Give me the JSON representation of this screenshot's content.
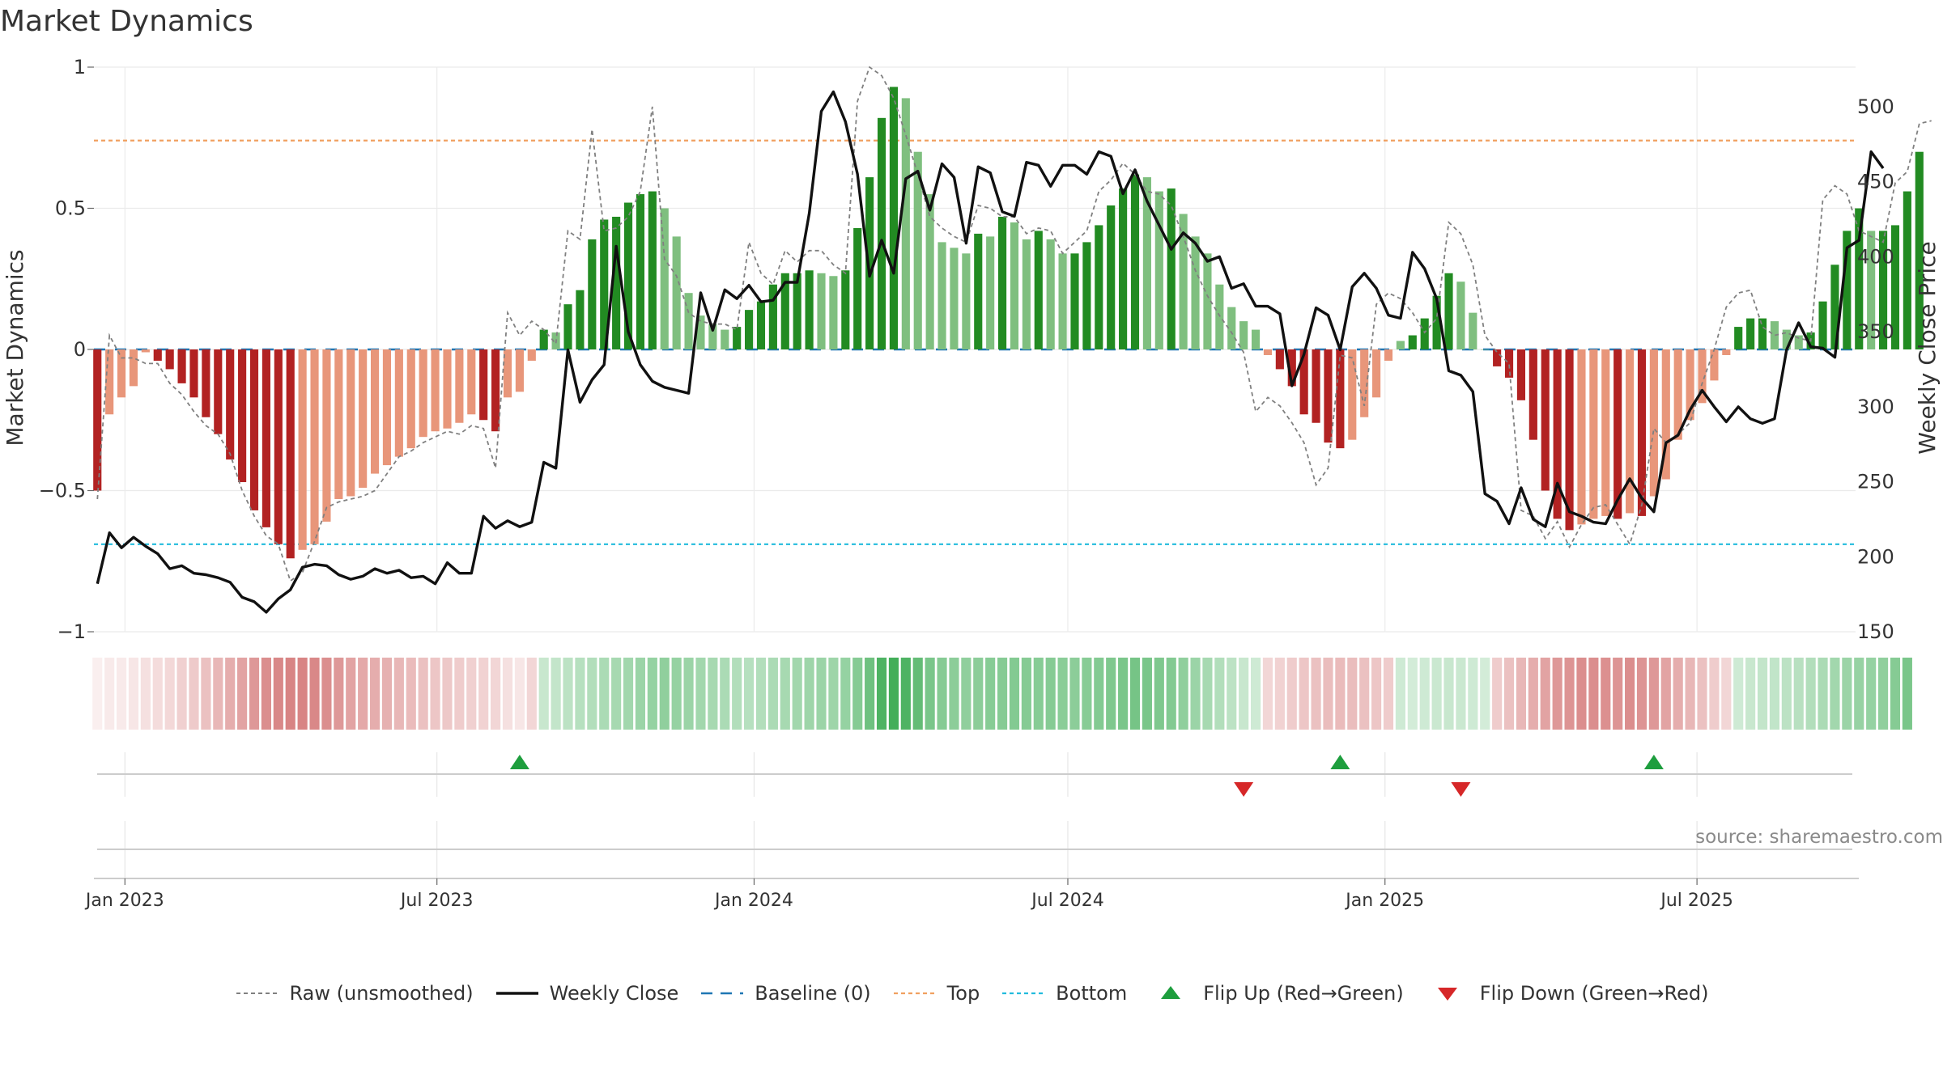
{
  "title": "Market Dynamics",
  "source": "source: sharemaestro.com",
  "legend": [
    {
      "label": "Raw (unsmoothed)",
      "kind": "dashed-gray"
    },
    {
      "label": "Weekly Close",
      "kind": "solid-black"
    },
    {
      "label": "Baseline (0)",
      "kind": "dashed-blue"
    },
    {
      "label": "Top",
      "kind": "dotted-orange"
    },
    {
      "label": "Bottom",
      "kind": "dotted-cyan"
    },
    {
      "label": "Flip Up (Red→Green)",
      "kind": "triangle-up"
    },
    {
      "label": "Flip Down (Green→Red)",
      "kind": "triangle-down"
    }
  ],
  "colors": {
    "pos_strong": "#228B22",
    "pos_weak": "#7FBF7F",
    "neg_strong": "#B22222",
    "neg_weak": "#E8967A",
    "raw": "#808080",
    "close": "#111111",
    "baseline": "#1F77B4",
    "top": "#F0A060",
    "bottom": "#22BBDD",
    "flip_up": "#1E9E3E",
    "flip_down": "#D62728"
  },
  "chart_data": {
    "type": "bar",
    "title": "Market Dynamics",
    "ylabel_left": "Market Dynamics",
    "ylabel_right": "Weekly Close Price",
    "ylim_left": [
      -1,
      1
    ],
    "ylim_right": [
      150,
      520
    ],
    "yticks_left": [
      "1",
      "0.5",
      "0",
      "−0.5",
      "−1"
    ],
    "yticks_left_values": [
      1,
      0.5,
      0,
      -0.5,
      -1
    ],
    "yticks_right": [
      "500",
      "450",
      "400",
      "350",
      "300",
      "250",
      "200",
      "150"
    ],
    "yticks_right_values": [
      500,
      450,
      400,
      350,
      300,
      250,
      200,
      150
    ],
    "xlim": [
      "2022-12-14",
      "2025-10-01"
    ],
    "xticks": [
      {
        "label": "Jan 2023",
        "date": "2023-01-01"
      },
      {
        "label": "Jul 2023",
        "date": "2023-07-01"
      },
      {
        "label": "Jan 2024",
        "date": "2024-01-01"
      },
      {
        "label": "Jul 2024",
        "date": "2024-07-01"
      },
      {
        "label": "Jan 2025",
        "date": "2025-01-01"
      },
      {
        "label": "Jul 2025",
        "date": "2025-07-01"
      }
    ],
    "first_week": "2022-12-16",
    "top_level": 0.74,
    "bottom_level": -0.69,
    "grid": true,
    "legend_position": "bottom",
    "dynamics": [
      -0.5,
      -0.23,
      -0.17,
      -0.13,
      -0.01,
      -0.04,
      -0.07,
      -0.12,
      -0.17,
      -0.24,
      -0.3,
      -0.39,
      -0.47,
      -0.57,
      -0.63,
      -0.69,
      -0.74,
      -0.71,
      -0.69,
      -0.61,
      -0.53,
      -0.52,
      -0.49,
      -0.44,
      -0.41,
      -0.38,
      -0.35,
      -0.31,
      -0.29,
      -0.28,
      -0.26,
      -0.23,
      -0.25,
      -0.29,
      -0.17,
      -0.15,
      -0.04,
      0.07,
      0.06,
      0.16,
      0.21,
      0.39,
      0.46,
      0.47,
      0.52,
      0.55,
      0.56,
      0.5,
      0.4,
      0.2,
      0.12,
      0.09,
      0.07,
      0.08,
      0.14,
      0.17,
      0.23,
      0.27,
      0.27,
      0.28,
      0.27,
      0.26,
      0.28,
      0.43,
      0.61,
      0.82,
      0.93,
      0.89,
      0.7,
      0.55,
      0.38,
      0.36,
      0.34,
      0.41,
      0.4,
      0.47,
      0.45,
      0.39,
      0.42,
      0.39,
      0.34,
      0.34,
      0.38,
      0.44,
      0.51,
      0.57,
      0.62,
      0.61,
      0.56,
      0.57,
      0.48,
      0.4,
      0.34,
      0.23,
      0.15,
      0.1,
      0.07,
      -0.02,
      -0.07,
      -0.13,
      -0.23,
      -0.26,
      -0.33,
      -0.35,
      -0.32,
      -0.24,
      -0.17,
      -0.04,
      0.03,
      0.05,
      0.11,
      0.19,
      0.27,
      0.24,
      0.13,
      0.0,
      -0.06,
      -0.1,
      -0.18,
      -0.32,
      -0.5,
      -0.6,
      -0.64,
      -0.62,
      -0.6,
      -0.59,
      -0.6,
      -0.58,
      -0.59,
      -0.52,
      -0.46,
      -0.32,
      -0.25,
      -0.19,
      -0.11,
      -0.02,
      0.08,
      0.11,
      0.11,
      0.1,
      0.07,
      0.05,
      0.06,
      0.17,
      0.3,
      0.42,
      0.5,
      0.42,
      0.42,
      0.44,
      0.56,
      0.7
    ],
    "raw": [
      -0.53,
      0.05,
      -0.03,
      -0.03,
      -0.05,
      -0.05,
      -0.12,
      -0.16,
      -0.22,
      -0.27,
      -0.3,
      -0.37,
      -0.5,
      -0.59,
      -0.66,
      -0.69,
      -0.82,
      -0.79,
      -0.68,
      -0.56,
      -0.54,
      -0.53,
      -0.52,
      -0.5,
      -0.44,
      -0.38,
      -0.36,
      -0.33,
      -0.31,
      -0.29,
      -0.3,
      -0.27,
      -0.28,
      -0.42,
      0.13,
      0.05,
      0.1,
      0.07,
      0.02,
      0.42,
      0.39,
      0.78,
      0.42,
      0.43,
      0.47,
      0.56,
      0.86,
      0.32,
      0.26,
      0.13,
      0.1,
      0.09,
      0.09,
      0.07,
      0.38,
      0.27,
      0.23,
      0.35,
      0.31,
      0.35,
      0.35,
      0.3,
      0.27,
      0.88,
      1.0,
      0.97,
      0.89,
      0.76,
      0.62,
      0.47,
      0.43,
      0.4,
      0.38,
      0.51,
      0.5,
      0.47,
      0.47,
      0.41,
      0.43,
      0.42,
      0.34,
      0.38,
      0.42,
      0.56,
      0.6,
      0.66,
      0.62,
      0.56,
      0.55,
      0.51,
      0.4,
      0.28,
      0.19,
      0.12,
      0.06,
      -0.01,
      -0.22,
      -0.17,
      -0.2,
      -0.26,
      -0.33,
      -0.48,
      -0.42,
      -0.02,
      -0.03,
      -0.2,
      0.16,
      0.2,
      0.18,
      0.13,
      0.06,
      0.11,
      0.45,
      0.41,
      0.3,
      0.05,
      -0.01,
      -0.05,
      -0.57,
      -0.59,
      -0.67,
      -0.61,
      -0.7,
      -0.62,
      -0.56,
      -0.55,
      -0.62,
      -0.69,
      -0.55,
      -0.28,
      -0.33,
      -0.3,
      -0.26,
      -0.12,
      0.0,
      0.15,
      0.2,
      0.21,
      0.08,
      0.05,
      0.06,
      0.04,
      0.03,
      0.53,
      0.58,
      0.55,
      0.42,
      0.4,
      0.38,
      0.59,
      0.63,
      0.8,
      0.81
    ],
    "close": [
      182,
      216,
      206,
      213,
      207,
      202,
      192,
      194,
      189,
      188,
      186,
      183,
      173,
      170,
      163,
      172,
      178,
      193,
      195,
      194,
      188,
      185,
      187,
      192,
      189,
      191,
      186,
      187,
      182,
      196,
      189,
      189,
      227,
      219,
      224,
      220,
      223,
      263,
      259,
      338,
      303,
      318,
      328,
      407,
      350,
      328,
      317,
      313,
      311,
      309,
      376,
      351,
      378,
      372,
      381,
      370,
      371,
      383,
      383,
      429,
      497,
      510,
      490,
      455,
      387,
      411,
      389,
      452,
      457,
      431,
      462,
      453,
      409,
      460,
      456,
      430,
      427,
      463,
      461,
      447,
      461,
      461,
      455,
      470,
      467,
      442,
      458,
      437,
      421,
      405,
      416,
      409,
      397,
      400,
      379,
      382,
      367,
      367,
      362,
      314,
      335,
      366,
      361,
      338,
      380,
      389,
      379,
      361,
      359,
      403,
      392,
      372,
      324,
      321,
      310,
      242,
      237,
      222,
      246,
      225,
      220,
      249,
      230,
      227,
      223,
      222,
      238,
      252,
      239,
      230,
      276,
      281,
      298,
      311,
      300,
      290,
      300,
      292,
      289,
      292,
      338,
      356,
      340,
      339,
      333,
      406,
      411,
      470,
      459
    ],
    "strip_levels": [
      0.07,
      0.1,
      0.1,
      0.12,
      0.15,
      0.17,
      0.19,
      0.23,
      0.26,
      0.3,
      0.35,
      0.4,
      0.45,
      0.5,
      0.55,
      0.58,
      0.6,
      0.6,
      0.58,
      0.55,
      0.5,
      0.45,
      0.42,
      0.4,
      0.38,
      0.35,
      0.33,
      0.3,
      0.28,
      0.27,
      0.25,
      0.23,
      0.22,
      0.2,
      0.15,
      0.12,
      0.2,
      0.25,
      0.27,
      0.3,
      0.33,
      0.35,
      0.38,
      0.4,
      0.42,
      0.45,
      0.48,
      0.5,
      0.48,
      0.45,
      0.42,
      0.4,
      0.38,
      0.35,
      0.33,
      0.35,
      0.38,
      0.4,
      0.42,
      0.44,
      0.45,
      0.44,
      0.48,
      0.55,
      0.65,
      0.8,
      0.85,
      0.8,
      0.7,
      0.6,
      0.55,
      0.52,
      0.5,
      0.52,
      0.54,
      0.55,
      0.56,
      0.55,
      0.54,
      0.55,
      0.53,
      0.52,
      0.54,
      0.56,
      0.58,
      0.6,
      0.62,
      0.6,
      0.58,
      0.56,
      0.5,
      0.45,
      0.4,
      0.35,
      0.3,
      0.25,
      0.22,
      0.2,
      0.22,
      0.25,
      0.28,
      0.3,
      0.32,
      0.33,
      0.32,
      0.3,
      0.28,
      0.25,
      0.22,
      0.2,
      0.22,
      0.24,
      0.25,
      0.24,
      0.22,
      0.2,
      0.25,
      0.3,
      0.35,
      0.4,
      0.45,
      0.5,
      0.52,
      0.55,
      0.55,
      0.54,
      0.52,
      0.55,
      0.52,
      0.5,
      0.45,
      0.4,
      0.35,
      0.3,
      0.25,
      0.2,
      0.22,
      0.25,
      0.27,
      0.28,
      0.3,
      0.32,
      0.35,
      0.38,
      0.42,
      0.45,
      0.47,
      0.48,
      0.5,
      0.55,
      0.6
    ],
    "flips": [
      {
        "type": "up",
        "date": "2023-08-18"
      },
      {
        "type": "down",
        "date": "2024-10-11"
      },
      {
        "type": "up",
        "date": "2024-12-06"
      },
      {
        "type": "down",
        "date": "2025-02-14"
      },
      {
        "type": "up",
        "date": "2025-06-06"
      }
    ]
  }
}
